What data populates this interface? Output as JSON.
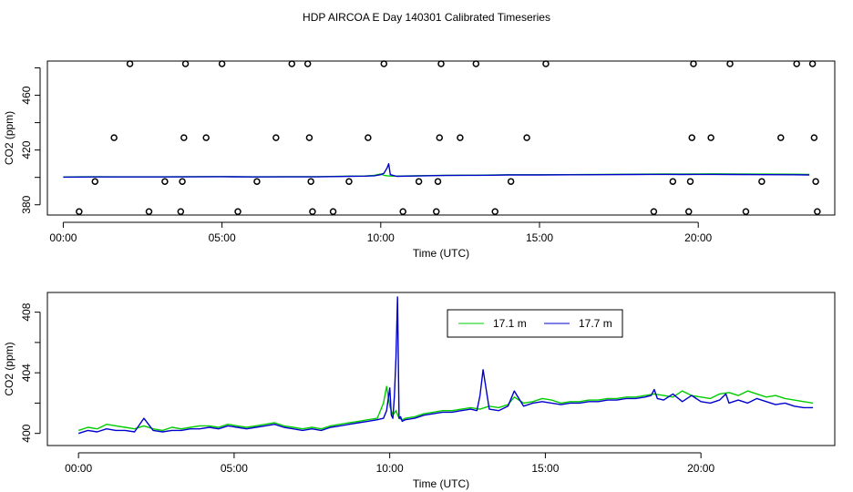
{
  "figure": {
    "title": "HDP AIRCOA E  Day 140301  Calibrated Timeseries"
  },
  "chart_data": [
    {
      "type": "line",
      "panel": "top",
      "xlabel": "Time (UTC)",
      "ylabel": "CO2 (ppm)",
      "x_unit": "hours (UTC)",
      "xlim": [
        -0.5,
        24.3
      ],
      "ylim": [
        372.5,
        485
      ],
      "x_ticks": [
        0,
        5,
        10,
        15,
        20
      ],
      "x_tick_labels": [
        "00:00",
        "05:00",
        "10:00",
        "15:00",
        "20:00"
      ],
      "y_ticks": [
        380,
        420,
        460
      ],
      "y_tick_labels": [
        "380",
        "420",
        "460"
      ],
      "y_minor_ticks": [
        400,
        440,
        480
      ],
      "grid": false,
      "legend": "none",
      "series": [
        {
          "color": "#00cc00",
          "x": [
            0.0,
            1.0,
            2.0,
            3.0,
            4.0,
            5.0,
            6.0,
            7.0,
            8.0,
            9.0,
            9.5,
            9.8,
            10.0,
            10.1,
            10.2,
            10.3,
            10.5,
            11.0,
            12.0,
            13.0,
            13.5,
            14.0,
            15.0,
            16.0,
            17.0,
            18.0,
            18.5,
            19.0,
            19.5,
            20.0,
            20.5,
            21.0,
            22.0,
            23.0,
            23.5
          ],
          "values": [
            400.3,
            400.5,
            400.4,
            400.4,
            400.5,
            400.6,
            400.4,
            400.5,
            400.5,
            400.9,
            401.0,
            401.5,
            402.5,
            401.5,
            401.2,
            401.0,
            400.9,
            401.1,
            401.5,
            401.6,
            401.7,
            401.9,
            401.9,
            402.0,
            402.2,
            402.3,
            402.4,
            402.5,
            402.4,
            402.5,
            402.6,
            402.5,
            402.4,
            402.3,
            402.1
          ]
        },
        {
          "color": "#0000cc",
          "x": [
            0.0,
            1.0,
            2.0,
            3.0,
            4.0,
            5.0,
            6.0,
            7.0,
            8.0,
            9.0,
            9.5,
            9.8,
            10.0,
            10.1,
            10.2,
            10.25,
            10.3,
            10.5,
            11.0,
            12.0,
            13.0,
            13.5,
            14.0,
            15.0,
            16.0,
            17.0,
            18.0,
            18.5,
            19.0,
            19.5,
            20.0,
            20.5,
            21.0,
            22.0,
            23.0,
            23.5
          ],
          "values": [
            400.2,
            400.3,
            400.3,
            400.3,
            400.4,
            400.5,
            400.3,
            400.4,
            400.4,
            400.8,
            400.9,
            401.2,
            402.0,
            403.0,
            407.0,
            410.0,
            402.0,
            400.8,
            401.0,
            401.4,
            401.5,
            401.6,
            401.8,
            401.8,
            401.9,
            402.0,
            402.1,
            402.2,
            402.2,
            402.1,
            402.2,
            402.2,
            402.1,
            402.0,
            401.9,
            401.8
          ]
        }
      ],
      "markers": {
        "style": "open-circle",
        "x": [
          0.5,
          1.0,
          1.6,
          2.1,
          2.7,
          3.2,
          3.7,
          3.75,
          3.8,
          3.85,
          4.5,
          5.0,
          5.5,
          6.1,
          6.7,
          7.2,
          7.7,
          7.75,
          7.8,
          7.85,
          8.5,
          9.0,
          9.6,
          10.1,
          10.7,
          11.2,
          11.75,
          11.8,
          11.85,
          11.9,
          12.5,
          13.0,
          13.6,
          14.1,
          14.6,
          15.2,
          18.6,
          19.2,
          19.7,
          19.75,
          19.8,
          19.85,
          20.4,
          21.0,
          21.5,
          22.0,
          22.6,
          23.1,
          23.6,
          23.65,
          23.7,
          23.75
        ],
        "values": [
          375,
          397,
          429,
          483,
          375,
          397,
          375,
          397,
          429,
          483,
          429,
          483,
          375,
          397,
          429,
          483,
          483,
          429,
          397,
          375,
          375,
          397,
          429,
          483,
          375,
          397,
          375,
          397,
          429,
          483,
          429,
          483,
          375,
          397,
          429,
          483,
          375,
          397,
          375,
          397,
          429,
          483,
          429,
          483,
          375,
          397,
          429,
          483,
          483,
          429,
          397,
          375
        ]
      }
    },
    {
      "type": "line",
      "panel": "bottom",
      "xlabel": "Time (UTC)",
      "ylabel": "CO2 (ppm)",
      "x_unit": "hours (UTC)",
      "xlim": [
        -1.0,
        24.3
      ],
      "ylim": [
        399.2,
        409.3
      ],
      "x_ticks": [
        0,
        5,
        10,
        15,
        20
      ],
      "x_tick_labels": [
        "00:00",
        "05:00",
        "10:00",
        "15:00",
        "20:00"
      ],
      "y_ticks": [
        400,
        404,
        408
      ],
      "y_tick_labels": [
        "400",
        "404",
        "408"
      ],
      "y_minor_ticks": [
        402,
        406
      ],
      "grid": false,
      "legend": "inside-top-right",
      "series": [
        {
          "name": "17.1 m",
          "color": "#00cc00",
          "x": [
            0.0,
            0.3,
            0.6,
            0.9,
            1.2,
            1.5,
            1.8,
            2.1,
            2.4,
            2.7,
            3.0,
            3.3,
            3.6,
            3.9,
            4.2,
            4.5,
            4.8,
            5.1,
            5.4,
            5.7,
            6.0,
            6.3,
            6.6,
            6.9,
            7.2,
            7.5,
            7.8,
            8.1,
            8.4,
            8.7,
            9.0,
            9.3,
            9.6,
            9.8,
            9.9,
            10.0,
            10.1,
            10.2,
            10.3,
            10.4,
            10.5,
            10.8,
            11.1,
            11.4,
            11.7,
            12.0,
            12.3,
            12.6,
            12.9,
            13.2,
            13.5,
            13.8,
            14.0,
            14.3,
            14.6,
            14.9,
            15.2,
            15.5,
            15.8,
            16.1,
            16.4,
            16.7,
            17.0,
            17.3,
            17.6,
            17.9,
            18.2,
            18.5,
            18.8,
            19.1,
            19.4,
            19.7,
            20.0,
            20.3,
            20.6,
            20.9,
            21.2,
            21.5,
            21.8,
            22.1,
            22.4,
            22.7,
            23.0,
            23.3,
            23.6
          ],
          "values": [
            400.2,
            400.4,
            400.3,
            400.6,
            400.5,
            400.4,
            400.3,
            400.5,
            400.3,
            400.2,
            400.4,
            400.3,
            400.4,
            400.5,
            400.5,
            400.4,
            400.6,
            400.5,
            400.4,
            400.5,
            400.6,
            400.7,
            400.5,
            400.4,
            400.3,
            400.4,
            400.3,
            400.5,
            400.6,
            400.7,
            400.8,
            400.9,
            401.0,
            402.0,
            403.1,
            401.8,
            401.2,
            401.5,
            401.0,
            400.9,
            401.0,
            401.1,
            401.3,
            401.4,
            401.5,
            401.5,
            401.6,
            401.7,
            401.6,
            401.8,
            401.7,
            401.9,
            402.4,
            402.0,
            402.1,
            402.3,
            402.2,
            402.0,
            402.1,
            402.1,
            402.2,
            402.2,
            402.3,
            402.3,
            402.4,
            402.4,
            402.5,
            402.6,
            402.5,
            402.4,
            402.8,
            402.5,
            402.4,
            402.3,
            402.6,
            402.7,
            402.5,
            402.8,
            402.6,
            402.4,
            402.5,
            402.3,
            402.2,
            402.1,
            402.0
          ]
        },
        {
          "name": "17.7 m",
          "color": "#0000cc",
          "x": [
            0.0,
            0.3,
            0.6,
            0.9,
            1.2,
            1.5,
            1.8,
            2.1,
            2.4,
            2.7,
            3.0,
            3.3,
            3.6,
            3.9,
            4.2,
            4.5,
            4.8,
            5.1,
            5.4,
            5.7,
            6.0,
            6.3,
            6.6,
            6.9,
            7.2,
            7.5,
            7.8,
            8.1,
            8.4,
            8.7,
            9.0,
            9.3,
            9.6,
            9.8,
            9.9,
            10.0,
            10.05,
            10.1,
            10.15,
            10.2,
            10.25,
            10.3,
            10.35,
            10.4,
            10.5,
            10.8,
            11.1,
            11.4,
            11.7,
            12.0,
            12.3,
            12.6,
            12.8,
            12.9,
            13.0,
            13.2,
            13.5,
            13.8,
            14.0,
            14.3,
            14.6,
            14.9,
            15.2,
            15.5,
            15.8,
            16.1,
            16.4,
            16.7,
            17.0,
            17.3,
            17.6,
            17.9,
            18.2,
            18.4,
            18.5,
            18.6,
            18.8,
            19.1,
            19.4,
            19.7,
            20.0,
            20.3,
            20.6,
            20.8,
            20.9,
            21.2,
            21.5,
            21.8,
            22.1,
            22.4,
            22.7,
            23.0,
            23.3,
            23.6
          ],
          "values": [
            400.0,
            400.2,
            400.1,
            400.3,
            400.2,
            400.2,
            400.1,
            401.0,
            400.2,
            400.1,
            400.2,
            400.2,
            400.3,
            400.3,
            400.4,
            400.3,
            400.5,
            400.4,
            400.3,
            400.4,
            400.5,
            400.6,
            400.4,
            400.3,
            400.2,
            400.3,
            400.2,
            400.4,
            400.5,
            400.6,
            400.7,
            400.8,
            400.9,
            401.0,
            401.5,
            403.0,
            401.2,
            401.0,
            402.5,
            405.0,
            409.0,
            401.0,
            401.1,
            400.8,
            400.9,
            401.0,
            401.2,
            401.3,
            401.4,
            401.4,
            401.5,
            401.6,
            401.5,
            402.5,
            404.2,
            401.6,
            401.5,
            401.8,
            402.8,
            401.8,
            402.0,
            402.1,
            402.0,
            401.9,
            402.0,
            402.0,
            402.1,
            402.1,
            402.2,
            402.2,
            402.3,
            402.3,
            402.4,
            402.5,
            402.9,
            402.3,
            402.2,
            402.6,
            402.1,
            402.5,
            402.1,
            402.0,
            402.2,
            402.6,
            402.0,
            402.2,
            402.0,
            402.3,
            402.1,
            401.9,
            402.0,
            401.8,
            401.7,
            401.7
          ]
        }
      ]
    }
  ]
}
